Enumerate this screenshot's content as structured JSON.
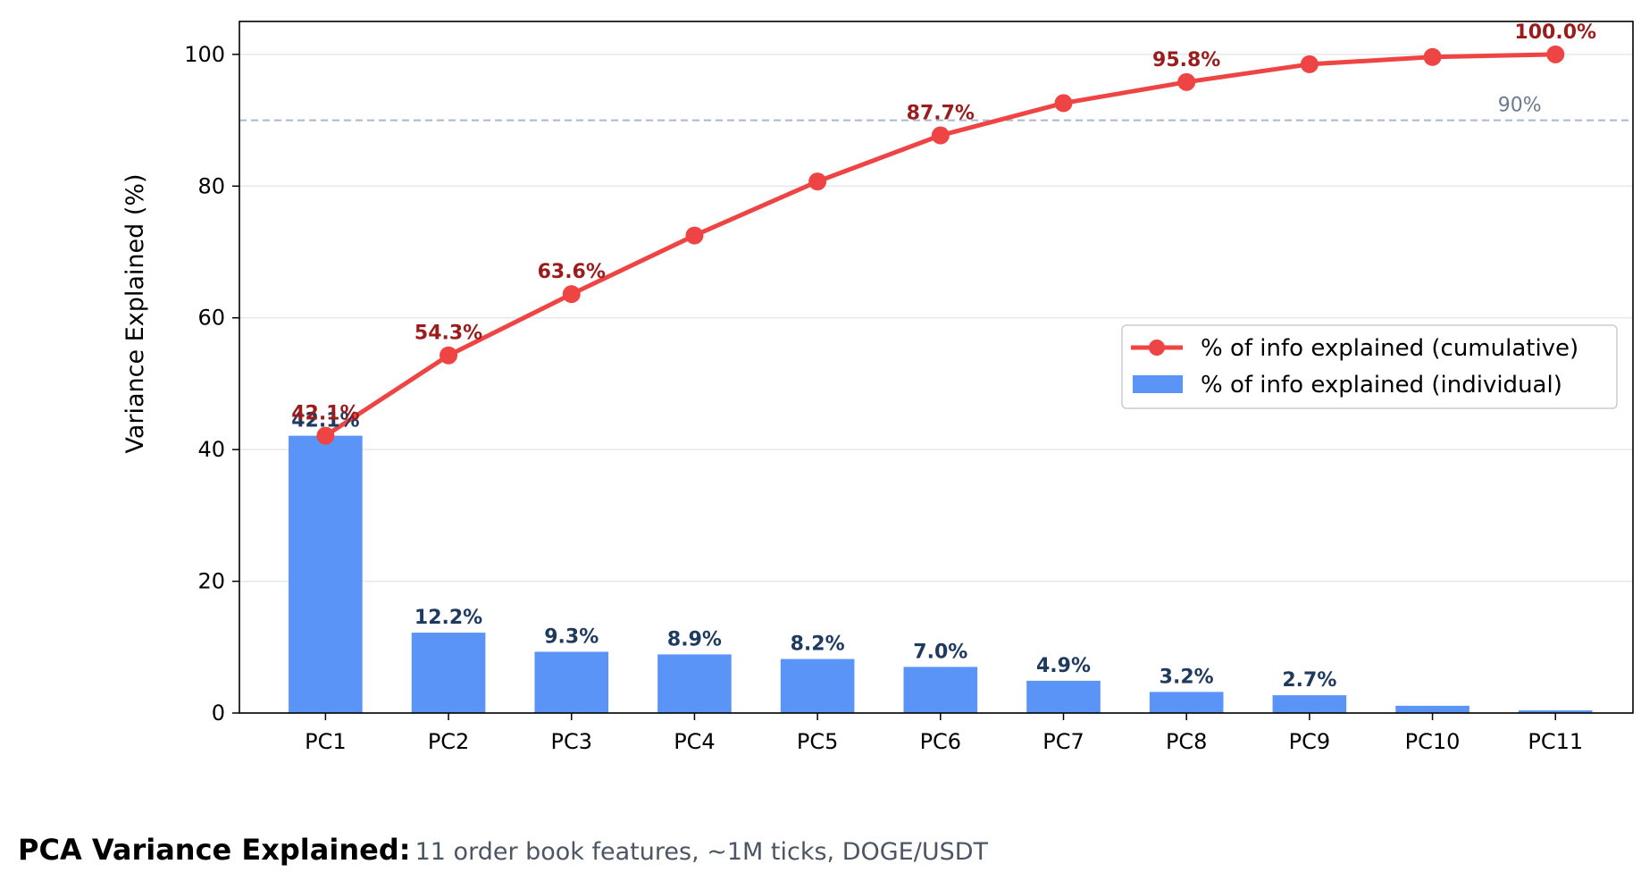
{
  "chart_data": {
    "type": "bar",
    "categories": [
      "PC1",
      "PC2",
      "PC3",
      "PC4",
      "PC5",
      "PC6",
      "PC7",
      "PC8",
      "PC9",
      "PC10",
      "PC11"
    ],
    "series": [
      {
        "name": "% of info explained (individual)",
        "type": "bar",
        "color": "#5b94f7",
        "values": [
          42.1,
          12.2,
          9.3,
          8.9,
          8.2,
          7.0,
          4.9,
          3.2,
          2.7,
          1.1,
          0.4
        ],
        "data_labels": [
          "42.1%",
          "12.2%",
          "9.3%",
          "8.9%",
          "8.2%",
          "7.0%",
          "4.9%",
          "3.2%",
          "2.7%",
          "",
          ""
        ]
      },
      {
        "name": "% of info explained (cumulative)",
        "type": "line",
        "color": "#ef4444",
        "values": [
          42.1,
          54.3,
          63.6,
          72.5,
          80.7,
          87.7,
          92.6,
          95.8,
          98.5,
          99.6,
          100.0
        ],
        "data_labels": [
          "42.1%",
          "54.3%",
          "63.6%",
          "",
          "",
          "87.7%",
          "",
          "95.8%",
          "",
          "",
          "100.0%"
        ]
      }
    ],
    "reference_line": {
      "y": 90,
      "label": "90%",
      "color": "#a9b8cb"
    },
    "ylabel": "Variance Explained (%)",
    "xlabel": "",
    "ylim": [
      0,
      105
    ],
    "yticks": [
      0,
      20,
      40,
      60,
      80,
      100
    ],
    "grid": "horizontal",
    "legend_position": "center-right"
  },
  "caption": {
    "title": "PCA Variance Explained:",
    "subtitle": "11 order book features, ~1M ticks, DOGE/USDT"
  }
}
